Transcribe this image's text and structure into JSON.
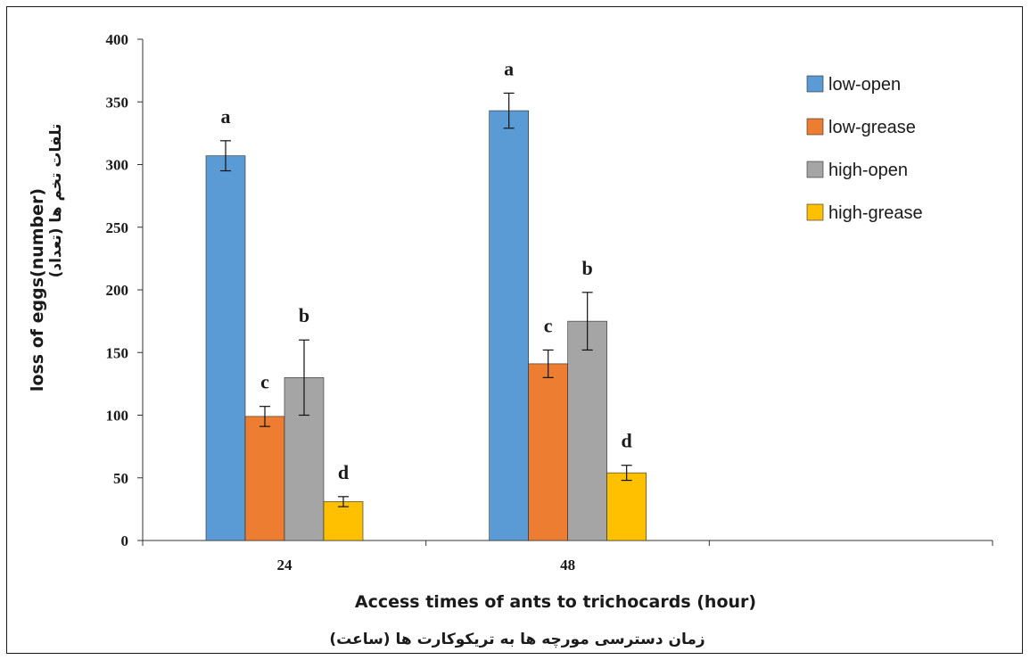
{
  "chart_data": {
    "type": "bar",
    "categories": [
      "24",
      "48"
    ],
    "series": [
      {
        "name": "low-open",
        "color": "#5b9bd5",
        "values": [
          307,
          343
        ],
        "errors": [
          12,
          14
        ],
        "letters": [
          "a",
          "a"
        ]
      },
      {
        "name": "low-grease",
        "color": "#ed7d31",
        "values": [
          99,
          141
        ],
        "errors": [
          8,
          11
        ],
        "letters": [
          "c",
          "c"
        ]
      },
      {
        "name": "high-open",
        "color": "#a5a5a5",
        "values": [
          130,
          175
        ],
        "errors": [
          30,
          23
        ],
        "letters": [
          "b",
          "b"
        ]
      },
      {
        "name": "high-grease",
        "color": "#ffc000",
        "values": [
          31,
          54
        ],
        "errors": [
          4,
          6
        ],
        "letters": [
          "d",
          "d"
        ]
      }
    ],
    "ylim": [
      0,
      400
    ],
    "yticks": [
      0,
      50,
      100,
      150,
      200,
      250,
      300,
      350,
      400
    ],
    "xlabel": "Access times of ants to trichocards (hour)",
    "xlabel_fa": "زمان دسترسی مورچه ها به تریکوکارت ها (ساعت)",
    "ylabel": "loss of eggs(number)",
    "ylabel_fa": "تلفات تخم ها (تعداد)",
    "legend_position": "top-right",
    "grid": false
  }
}
